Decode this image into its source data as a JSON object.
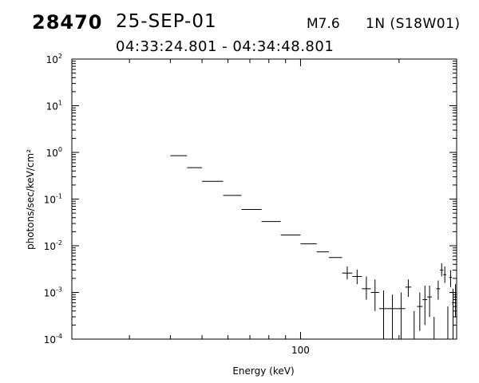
{
  "header": {
    "event_id": "28470",
    "date": "25-SEP-01",
    "flare_class": "M7.6",
    "location": "1N (S18W01)",
    "time_range": "04:33:24.801 - 04:34:48.801"
  },
  "chart_data": {
    "type": "scatter",
    "title": "",
    "xlabel": "Energy (keV)",
    "ylabel": "photons/sec/keV/cm²",
    "xscale": "log",
    "yscale": "log",
    "xlim": [
      20,
      300
    ],
    "ylim": [
      0.0001,
      100
    ],
    "xticks": [
      {
        "value": 100,
        "label": "100"
      }
    ],
    "yticks": [
      {
        "value": 0.0001,
        "mantissa": "10",
        "exp": "-4"
      },
      {
        "value": 0.001,
        "mantissa": "10",
        "exp": "-3"
      },
      {
        "value": 0.01,
        "mantissa": "10",
        "exp": "-2"
      },
      {
        "value": 0.1,
        "mantissa": "10",
        "exp": "-1"
      },
      {
        "value": 1,
        "mantissa": "10",
        "exp": "0"
      },
      {
        "value": 10,
        "mantissa": "10",
        "exp": "1"
      },
      {
        "value": 100,
        "mantissa": "10",
        "exp": "2"
      }
    ],
    "grid": false,
    "legend": "none",
    "series": [
      {
        "points": [
          {
            "x_lo": 40,
            "x_hi": 45,
            "y": 0.85
          },
          {
            "x_lo": 45,
            "x_hi": 50,
            "y": 0.47
          },
          {
            "x_lo": 50,
            "x_hi": 58,
            "y": 0.24
          },
          {
            "x_lo": 58,
            "x_hi": 66,
            "y": 0.12
          },
          {
            "x_lo": 66,
            "x_hi": 76,
            "y": 0.06
          },
          {
            "x_lo": 76,
            "x_hi": 87,
            "y": 0.033
          },
          {
            "x_lo": 87,
            "x_hi": 100,
            "y": 0.017
          },
          {
            "x_lo": 100,
            "x_hi": 112,
            "y": 0.011
          },
          {
            "x_lo": 112,
            "x_hi": 122,
            "y": 0.0074
          },
          {
            "x_lo": 122,
            "x_hi": 134,
            "y": 0.0056
          },
          {
            "x_lo": 134,
            "x_hi": 144,
            "y": 0.0026,
            "y_lo": 0.0019,
            "y_hi": 0.0036
          },
          {
            "x_lo": 144,
            "x_hi": 154,
            "y": 0.0022,
            "y_lo": 0.0015,
            "y_hi": 0.0031
          },
          {
            "x_lo": 154,
            "x_hi": 164,
            "y": 0.0012,
            "y_lo": 0.0007,
            "y_hi": 0.0022
          },
          {
            "x_lo": 164,
            "x_hi": 174,
            "y": 0.001,
            "y_lo": 0.0004,
            "y_hi": 0.0019
          },
          {
            "x_lo": 174,
            "x_hi": 185,
            "y": 0.00045,
            "y_lo": 0.0001,
            "y_hi": 0.0011
          },
          {
            "x_lo": 185,
            "x_hi": 197,
            "y": 0.00045,
            "y_lo": 0.0001,
            "y_hi": 0.0009
          },
          {
            "x_lo": 197,
            "x_hi": 209,
            "y": 0.00045,
            "y_lo": 0.0001,
            "y_hi": 0.001
          },
          {
            "x_lo": 209,
            "x_hi": 218,
            "y": 0.0013,
            "y_lo": 0.0008,
            "y_hi": 0.0019
          },
          {
            "x_lo": 218,
            "x_hi": 227,
            "y": 0.0001,
            "y_lo": 0.0001,
            "y_hi": 0.0004
          },
          {
            "x_lo": 227,
            "x_hi": 236,
            "y": 0.0005,
            "y_lo": 0.00015,
            "y_hi": 0.001
          },
          {
            "x_lo": 236,
            "x_hi": 244,
            "y": 0.0007,
            "y_lo": 0.0002,
            "y_hi": 0.0014
          },
          {
            "x_lo": 244,
            "x_hi": 252,
            "y": 0.0008,
            "y_lo": 0.0003,
            "y_hi": 0.0014
          },
          {
            "x_lo": 252,
            "x_hi": 260,
            "y": 0.0001,
            "y_lo": 0.0001,
            "y_hi": 0.0003
          },
          {
            "x_lo": 260,
            "x_hi": 267,
            "y": 0.0012,
            "y_lo": 0.0007,
            "y_hi": 0.0018
          },
          {
            "x_lo": 267,
            "x_hi": 273,
            "y": 0.003,
            "y_lo": 0.0022,
            "y_hi": 0.0042
          },
          {
            "x_lo": 273,
            "x_hi": 279,
            "y": 0.0024,
            "y_lo": 0.0016,
            "y_hi": 0.0036
          },
          {
            "x_lo": 279,
            "x_hi": 285,
            "y": 0.0001,
            "y_lo": 0.0001,
            "y_hi": 0.0005
          },
          {
            "x_lo": 285,
            "x_hi": 290,
            "y": 0.0021,
            "y_lo": 0.0013,
            "y_hi": 0.003
          },
          {
            "x_lo": 290,
            "x_hi": 295,
            "y": 0.0006,
            "y_lo": 0.0001,
            "y_hi": 0.0012
          },
          {
            "x_lo": 295,
            "x_hi": 300,
            "y": 0.0008,
            "y_lo": 0.0003,
            "y_hi": 0.0015
          }
        ]
      }
    ]
  }
}
